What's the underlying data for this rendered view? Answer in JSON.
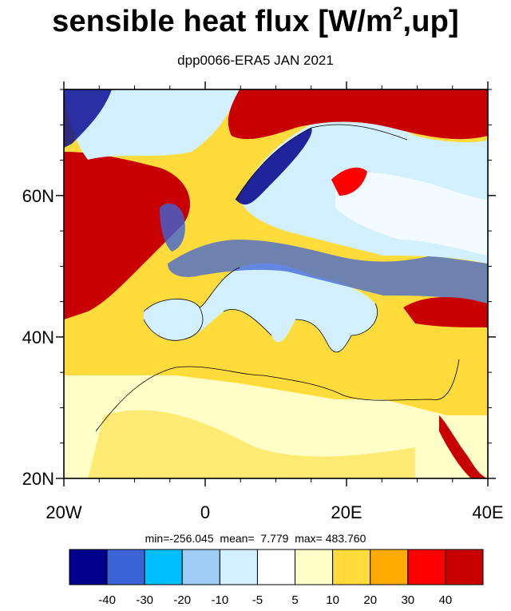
{
  "title_main": "sensible heat flux [W/m",
  "title_sup": "2",
  "title_tail": ",up]",
  "subtitle": "dpp0066-ERA5  JAN 2021",
  "stats": {
    "min_label": "min=",
    "min": "-256.045",
    "mean_label": "mean=",
    "mean": "7.779",
    "max_label": "max=",
    "max": "483.760"
  },
  "map": {
    "lon_range": [
      -20,
      40
    ],
    "lat_range": [
      20,
      75
    ],
    "x_ticks": [
      {
        "lon": -20,
        "label": "20W"
      },
      {
        "lon": 0,
        "label": "0"
      },
      {
        "lon": 20,
        "label": "20E"
      },
      {
        "lon": 40,
        "label": "40E"
      }
    ],
    "y_ticks": [
      {
        "lat": 20,
        "label": "20N"
      },
      {
        "lat": 40,
        "label": "40N"
      },
      {
        "lat": 60,
        "label": "60N"
      }
    ]
  },
  "colorbar": {
    "colors": [
      "#00008c",
      "#3d64d6",
      "#00bfff",
      "#a0cdf5",
      "#d2f0ff",
      "#ffffff",
      "#ffffc8",
      "#ffdc3c",
      "#ffaa00",
      "#ff0000",
      "#c80000"
    ],
    "labels": [
      "-40",
      "-30",
      "-20",
      "-10",
      "-5",
      "5",
      "10",
      "20",
      "30",
      "40"
    ]
  }
}
